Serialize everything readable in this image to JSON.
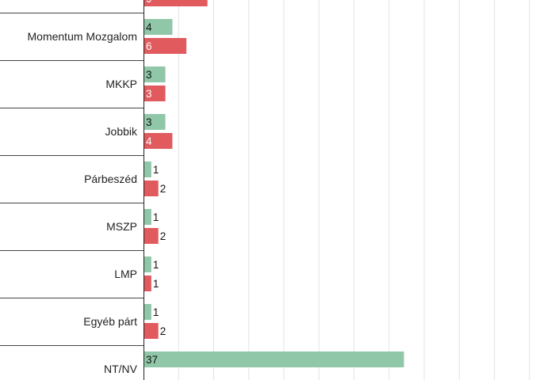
{
  "chart_data": {
    "type": "bar",
    "orientation": "horizontal",
    "categories": [
      "",
      "Momentum Mozgalom",
      "MKKP",
      "Jobbik",
      "Párbeszéd",
      "MSZP",
      "LMP",
      "Egyéb párt",
      "NT/NV"
    ],
    "series": [
      {
        "color": "#8fc7a8",
        "values": [
          null,
          4,
          3,
          3,
          1,
          1,
          1,
          1,
          37
        ]
      },
      {
        "color": "#e05a5e",
        "values": [
          9,
          6,
          3,
          4,
          2,
          2,
          1,
          2,
          null
        ]
      }
    ],
    "value_label_colors": [
      "#111111",
      "#ffffff"
    ],
    "xlim": [
      0,
      58
    ],
    "grid": true,
    "legend": "none"
  }
}
